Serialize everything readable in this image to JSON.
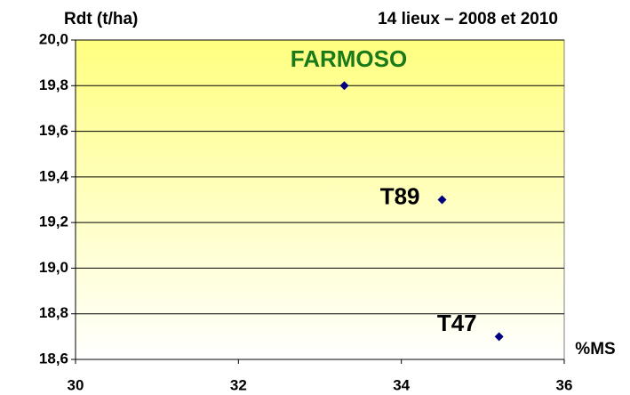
{
  "chart_data": {
    "type": "scatter",
    "title": "14 lieux – 2008 et 2010",
    "ylabel": "Rdt (t/ha)",
    "xlabel": "%MS",
    "x": [
      33.3,
      34.5,
      35.2
    ],
    "values": [
      19.8,
      19.3,
      18.7
    ],
    "point_labels": [
      "FARMOSO",
      "T89",
      "T47"
    ],
    "point_label_colors": [
      "#1a7a1a",
      "#000000",
      "#000000"
    ],
    "color": "#000080",
    "xlim": [
      30,
      36
    ],
    "xticks": [
      30,
      32,
      34,
      36
    ],
    "ylim": [
      18.6,
      20.0
    ],
    "yticks": [
      {
        "value": 18.6,
        "label": "18,6"
      },
      {
        "value": 18.8,
        "label": "18,8"
      },
      {
        "value": 19.0,
        "label": "19,0"
      },
      {
        "value": 19.2,
        "label": "19,2"
      },
      {
        "value": 19.4,
        "label": "19,4"
      },
      {
        "value": 19.6,
        "label": "19,6"
      },
      {
        "value": 19.8,
        "label": "19,8"
      },
      {
        "value": 20.0,
        "label": "20,0"
      }
    ],
    "grid": true
  }
}
